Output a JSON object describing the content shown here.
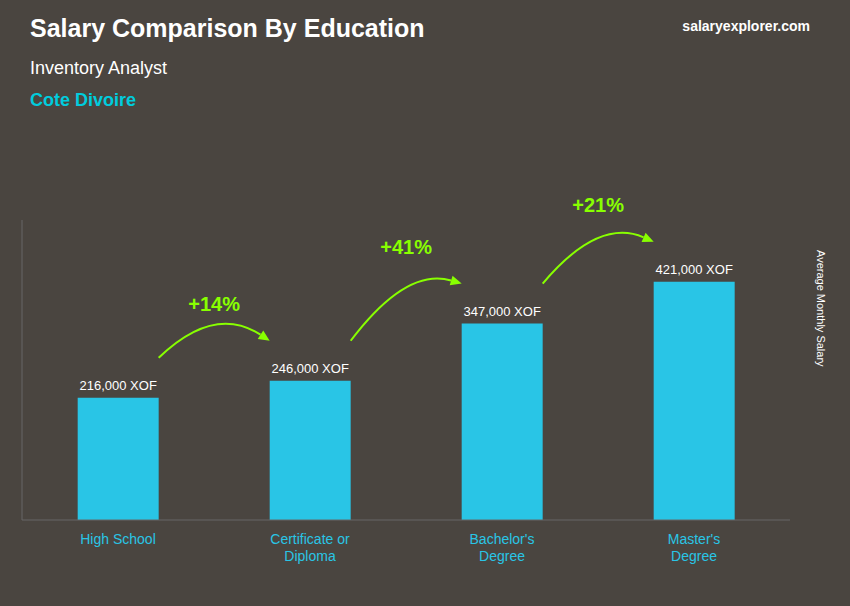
{
  "chart_data": {
    "type": "bar",
    "title": "Salary Comparison By Education",
    "subtitle": [
      "Inventory Analyst",
      "Cote Divoire"
    ],
    "ylabel": "Average Monthly Salary",
    "annotations": [
      "salaryexplorer.com"
    ],
    "categories": [
      "High School",
      "Certificate or\nDiploma",
      "Bachelor's\nDegree",
      "Master's\nDegree"
    ],
    "values": [
      216000,
      246000,
      347000,
      421000
    ],
    "value_labels": [
      "216,000 XOF",
      "246,000 XOF",
      "347,000 XOF",
      "421,000 XOF"
    ],
    "data_labels": true,
    "change_labels": [
      "+14%",
      "+41%",
      "+21%"
    ],
    "color": "#29c5e6",
    "ylim": [
      0,
      530000
    ],
    "tick_labels": "x",
    "grid": false
  }
}
